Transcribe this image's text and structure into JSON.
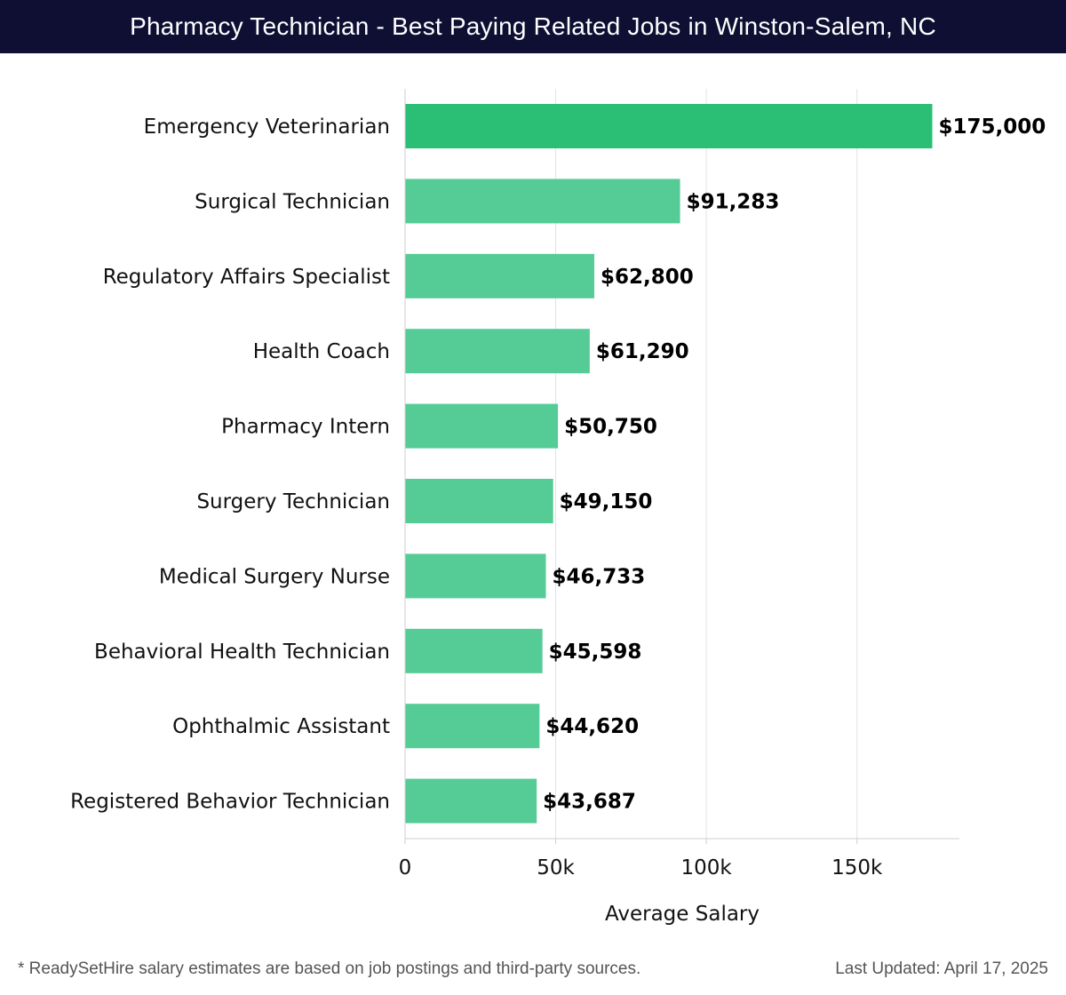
{
  "header": {
    "title": "Pharmacy Technician - Best Paying Related Jobs in Winston-Salem, NC"
  },
  "chart_data": {
    "type": "bar",
    "orientation": "horizontal",
    "title": "Pharmacy Technician - Best Paying Related Jobs in Winston-Salem, NC",
    "categories": [
      "Emergency Veterinarian",
      "Surgical Technician",
      "Regulatory Affairs Specialist",
      "Health Coach",
      "Pharmacy Intern",
      "Surgery Technician",
      "Medical Surgery Nurse",
      "Behavioral Health Technician",
      "Ophthalmic Assistant",
      "Registered Behavior Technician"
    ],
    "values": [
      175000,
      91283,
      62800,
      61290,
      50750,
      49150,
      46733,
      45598,
      44620,
      43687
    ],
    "value_labels": [
      "$175,000",
      "$91,283",
      "$62,800",
      "$61,290",
      "$50,750",
      "$49,150",
      "$46,733",
      "$45,598",
      "$44,620",
      "$43,687"
    ],
    "xlabel": "Average Salary",
    "ylabel": "",
    "xlim": [
      0,
      184000
    ],
    "ticks": [
      0,
      50000,
      100000,
      150000
    ],
    "tick_labels": [
      "0",
      "50k",
      "100k",
      "150k"
    ],
    "grid": true,
    "colors": {
      "top_bar": "#2bbf76",
      "bar": "#55cc95",
      "grid": "#e3e3e3"
    }
  },
  "footer": {
    "note": "* ReadySetHire salary estimates are based on job postings and third-party sources.",
    "updated": "Last Updated: April 17, 2025"
  }
}
